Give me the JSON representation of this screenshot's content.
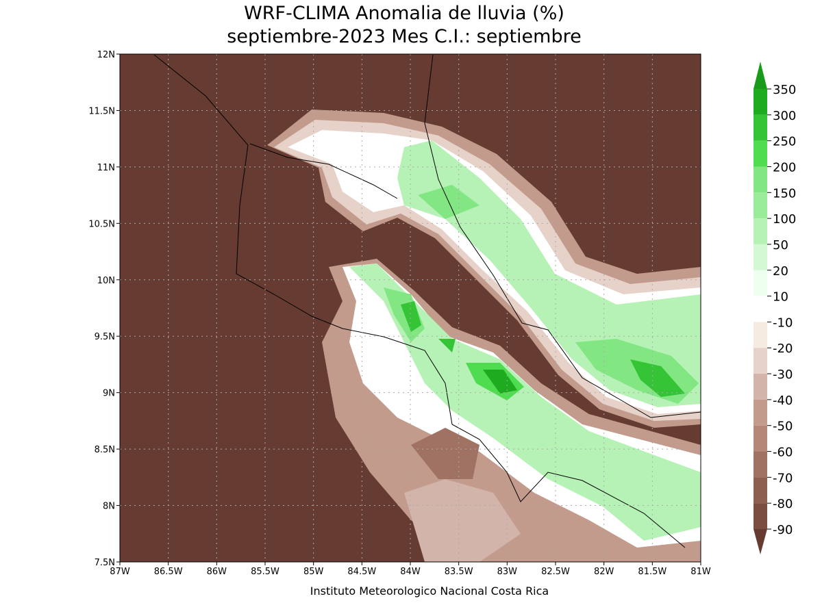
{
  "title": "WRF-CLIMA Anomalia de lluvia (%)",
  "subtitle": "septiembre-2023 Mes C.I.: septiembre",
  "map": {
    "lon_ticks": [
      "87W",
      "86.5W",
      "86W",
      "85.5W",
      "85W",
      "84.5W",
      "84W",
      "83.5W",
      "83W",
      "82.5W",
      "82W",
      "81.5W",
      "81W"
    ],
    "lat_ticks": [
      "7.5N",
      "8N",
      "8.5N",
      "9N",
      "9.5N",
      "10N",
      "10.5N",
      "11N",
      "11.5N",
      "12N"
    ],
    "grid": true
  },
  "colorbar": {
    "levels": [
      350,
      300,
      250,
      200,
      150,
      100,
      50,
      20,
      10,
      -10,
      -20,
      -30,
      -40,
      -50,
      -60,
      -70,
      -80,
      -90
    ],
    "colors": [
      "#1a9a1a",
      "#1fab1f",
      "#35c435",
      "#50dc50",
      "#82e682",
      "#9aec9a",
      "#b6f2b6",
      "#d4f8d4",
      "#efffef",
      "#ffffff",
      "#f5ebe0",
      "#e6d2c8",
      "#d2b4aa",
      "#c39b8c",
      "#b48778",
      "#a07264",
      "#8c5f50",
      "#7a4e41",
      "#663c32"
    ]
  },
  "credit": "Instituto Meteorologico Nacional Costa Rica"
}
